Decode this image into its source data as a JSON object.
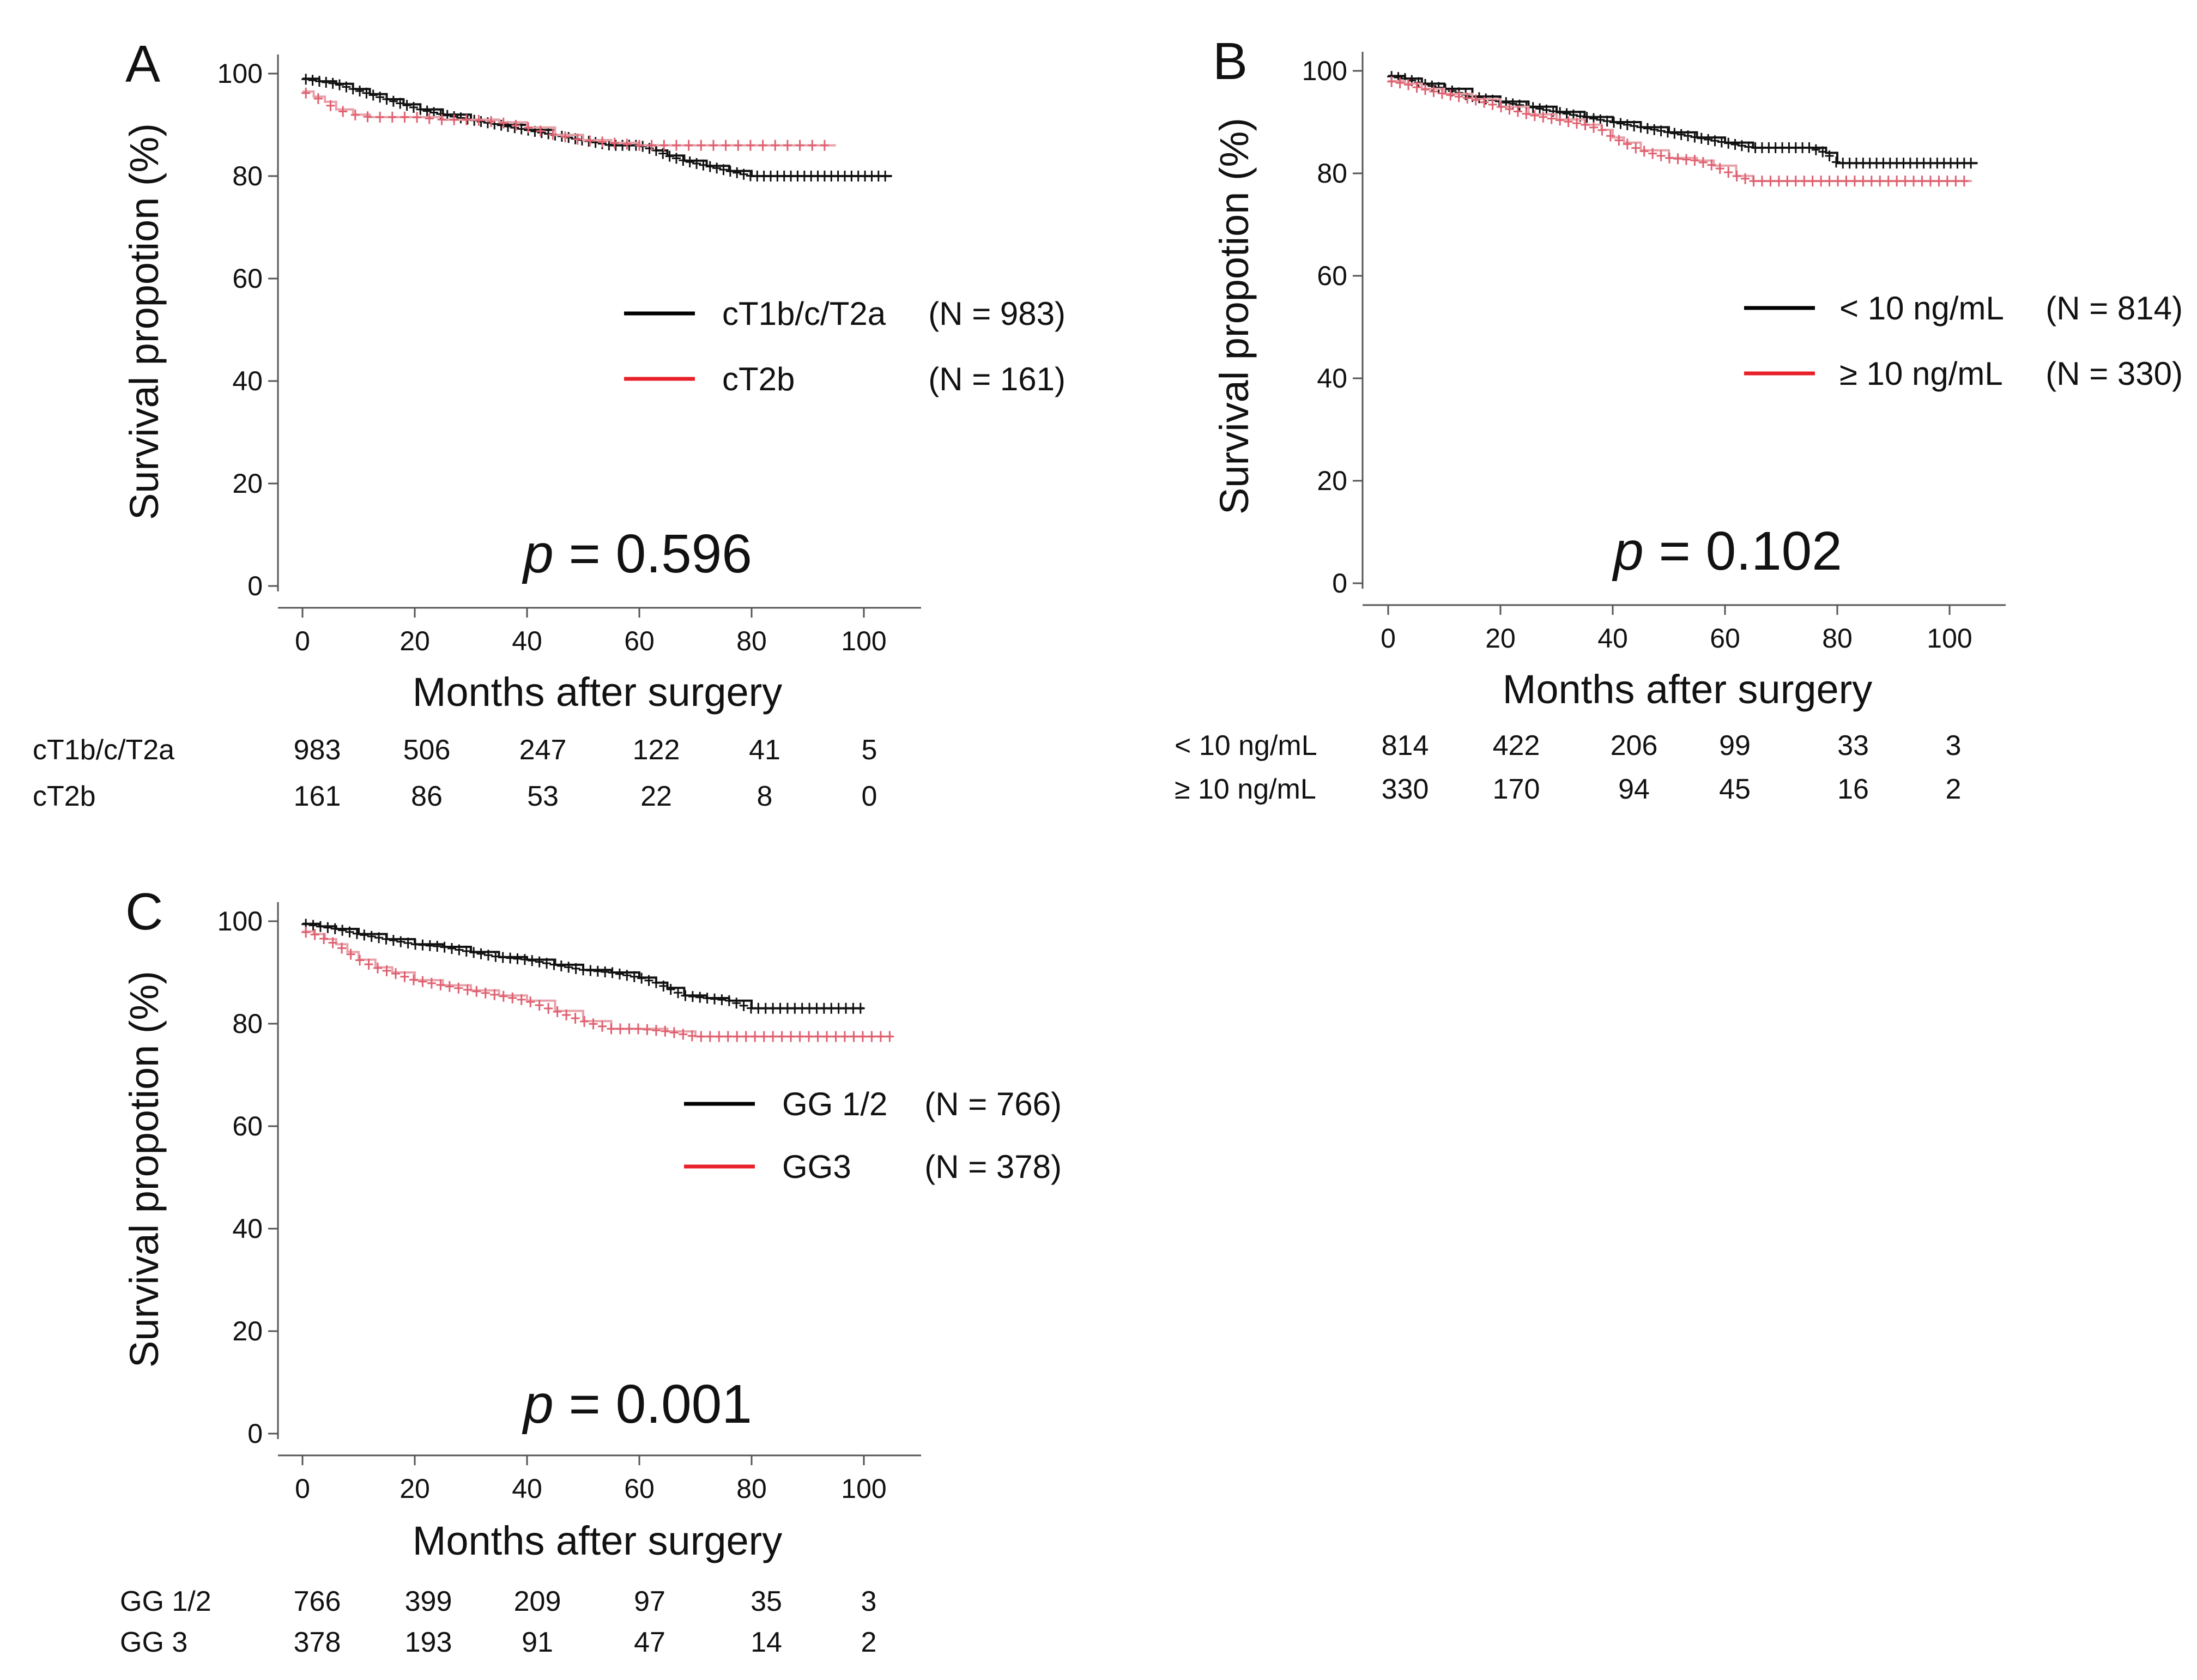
{
  "chart_data": [
    {
      "id": "A",
      "type": "line",
      "panel_label": "A",
      "xlabel": "Months after surgery",
      "ylabel": "Survival propotion (%)",
      "xlim": [
        0,
        108
      ],
      "ylim": [
        0,
        100
      ],
      "xticks": [
        0,
        20,
        40,
        60,
        80,
        100
      ],
      "yticks": [
        0,
        20,
        40,
        60,
        80,
        100
      ],
      "p_prefix": "p",
      "p_suffix": " = 0.596",
      "series": [
        {
          "name": "cT1b/c/T2a",
          "legend_name": "cT1b/c/T2a",
          "legend_n": "(N = 983)",
          "color": "#111111",
          "censor_color": "#111111",
          "censor_step": 1.2,
          "x": [
            0,
            3,
            6,
            9,
            12,
            15,
            18,
            21,
            25,
            30,
            35,
            40,
            45,
            50,
            55,
            60,
            63,
            65,
            68,
            72,
            76,
            80,
            85,
            90,
            95,
            100,
            105
          ],
          "y": [
            99,
            98.5,
            98,
            97,
            96,
            95,
            94,
            93,
            92,
            91,
            90,
            89,
            88,
            87,
            86,
            86,
            85,
            84,
            83,
            82,
            81,
            80,
            80,
            80,
            80,
            80,
            80
          ]
        },
        {
          "name": "cT2b",
          "legend_name": "cT2b",
          "legend_n": "(N = 161)",
          "color": "#e8a0a8",
          "censor_color": "#e06070",
          "censor_step": 2.2,
          "x": [
            0,
            2,
            4,
            6,
            9,
            12,
            20,
            25,
            30,
            35,
            40,
            45,
            50,
            55,
            60,
            65,
            70,
            75,
            80,
            85,
            90,
            95
          ],
          "y": [
            96.5,
            95.5,
            94.5,
            93,
            92,
            91.5,
            91.5,
            91,
            91,
            90.5,
            89.5,
            88,
            87,
            86.5,
            86,
            86,
            86,
            86,
            86,
            86,
            86,
            86
          ]
        }
      ],
      "risk_table": {
        "times": [
          0,
          20,
          40,
          60,
          80,
          100
        ],
        "rows": [
          {
            "label": "cT1b/c/T2a",
            "values": [
              "983",
              "506",
              "247",
              "122",
              "41",
              "5"
            ]
          },
          {
            "label": "cT2b",
            "values": [
              "161",
              "86",
              "53",
              "22",
              "8",
              "0"
            ]
          }
        ]
      }
    },
    {
      "id": "B",
      "type": "line",
      "panel_label": "B",
      "xlabel": "Months after surgery",
      "ylabel": "Survival propotion (%)",
      "xlim": [
        0,
        108
      ],
      "ylim": [
        0,
        100
      ],
      "xticks": [
        0,
        20,
        40,
        60,
        80,
        100
      ],
      "yticks": [
        0,
        20,
        40,
        60,
        80,
        100
      ],
      "p_prefix": "p",
      "p_suffix": " = 0.102",
      "series": [
        {
          "name": "< 10 ng/mL",
          "legend_name": "< 10 ng/mL",
          "legend_n": "(N = 814)",
          "color": "#111111",
          "censor_color": "#111111",
          "censor_step": 1.2,
          "x": [
            0,
            3,
            6,
            10,
            15,
            20,
            25,
            30,
            35,
            40,
            45,
            50,
            55,
            60,
            65,
            70,
            75,
            78,
            80,
            85,
            90,
            95,
            100,
            105
          ],
          "y": [
            99,
            98.5,
            97.5,
            96.5,
            95,
            94,
            93,
            92,
            91,
            90,
            89,
            88,
            87,
            86,
            85,
            85,
            85,
            84,
            82,
            82,
            82,
            82,
            82,
            82
          ]
        },
        {
          "name": "≥ 10 ng/mL",
          "legend_name": "≥ 10 ng/mL",
          "legend_n": "(N = 330)",
          "color": "#e8a0a8",
          "censor_color": "#e06070",
          "censor_step": 1.5,
          "x": [
            0,
            3,
            6,
            10,
            15,
            20,
            25,
            30,
            35,
            38,
            40,
            42,
            45,
            50,
            55,
            58,
            62,
            65,
            70,
            75,
            80,
            85,
            90,
            95,
            100,
            104
          ],
          "y": [
            98,
            97.5,
            96.5,
            95.5,
            94.5,
            93,
            91.5,
            90.5,
            89.5,
            88.5,
            87,
            86,
            84.5,
            83,
            82.5,
            81.5,
            79.5,
            78.5,
            78.5,
            78.5,
            78.5,
            78.5,
            78.5,
            78.5,
            78.5,
            78.5
          ]
        }
      ],
      "risk_table": {
        "times": [
          0,
          20,
          40,
          60,
          80,
          100
        ],
        "rows": [
          {
            "label": "< 10 ng/mL",
            "values": [
              "814",
              "422",
              "206",
              "99",
              "33",
              "3"
            ]
          },
          {
            "label": "≥ 10 ng/mL",
            "values": [
              "330",
              "170",
              "94",
              "45",
              "16",
              "2"
            ]
          }
        ]
      }
    },
    {
      "id": "C",
      "type": "line",
      "panel_label": "C",
      "xlabel": "Months after surgery",
      "ylabel": "Survival propotion (%)",
      "xlim": [
        0,
        108
      ],
      "ylim": [
        0,
        100
      ],
      "xticks": [
        0,
        20,
        40,
        60,
        80,
        100
      ],
      "yticks": [
        0,
        20,
        40,
        60,
        80,
        100
      ],
      "p_prefix": "p",
      "p_suffix": " = 0.001",
      "series": [
        {
          "name": "GG 1/2",
          "legend_name": "GG 1/2",
          "legend_n": "(N = 766)",
          "color": "#111111",
          "censor_color": "#111111",
          "censor_step": 1.3,
          "x": [
            0,
            3,
            6,
            10,
            15,
            20,
            25,
            30,
            35,
            40,
            45,
            50,
            55,
            60,
            63,
            65,
            68,
            72,
            76,
            80,
            85,
            90,
            95,
            100
          ],
          "y": [
            99.5,
            99,
            98.5,
            97.5,
            96.5,
            95.5,
            95,
            94,
            93,
            92.5,
            91.5,
            90.5,
            90,
            89,
            88,
            87,
            85.5,
            85,
            84.5,
            83,
            83,
            83,
            83,
            83
          ]
        },
        {
          "name": "GG3",
          "legend_name": "GG3",
          "legend_n": "(N = 378)",
          "color": "#e8a0a8",
          "censor_color": "#e06070",
          "censor_step": 1.6,
          "x": [
            0,
            2,
            4,
            6,
            8,
            10,
            13,
            16,
            20,
            25,
            30,
            35,
            40,
            45,
            50,
            55,
            60,
            65,
            70,
            75,
            80,
            85,
            90,
            95,
            100,
            105
          ],
          "y": [
            98,
            97.5,
            96.5,
            95.5,
            94,
            92.5,
            91,
            90,
            88.5,
            87.5,
            86.5,
            85.5,
            84.5,
            82.5,
            80.5,
            79,
            79,
            78.5,
            77.5,
            77.5,
            77.5,
            77.5,
            77.5,
            77.5,
            77.5,
            77.5
          ]
        }
      ],
      "risk_table": {
        "times": [
          0,
          20,
          40,
          60,
          80,
          100
        ],
        "rows": [
          {
            "label": "GG 1/2",
            "values": [
              "766",
              "399",
              "209",
              "97",
              "35",
              "3"
            ]
          },
          {
            "label": "GG 3",
            "values": [
              "378",
              "193",
              "91",
              "47",
              "14",
              "2"
            ]
          }
        ]
      }
    }
  ]
}
